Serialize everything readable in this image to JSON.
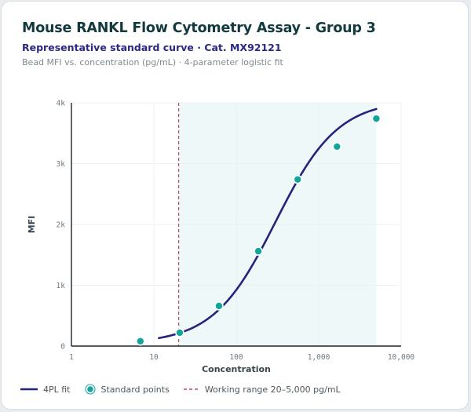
{
  "header": {
    "title": "Mouse RANKL Flow Cytometry Assay - Group 3",
    "subtitle": "Representative standard curve · Cat. MX92121",
    "caption": "Bead MFI vs. concentration (pg/mL) · 4-parameter logistic fit"
  },
  "chart_data": {
    "type": "scatter",
    "xlabel": "Concentration",
    "ylabel": "MFI",
    "x_scale": "log",
    "xlim": [
      1,
      10000
    ],
    "ylim": [
      0,
      4000
    ],
    "x_tick_labels": [
      "1",
      "10",
      "100",
      "1,000",
      "10,000"
    ],
    "x_ticks": [
      1,
      10,
      100,
      1000,
      10000
    ],
    "y_tick_labels": [
      "0",
      "1k",
      "2k",
      "3k",
      "4k"
    ],
    "y_ticks": [
      0,
      1000,
      2000,
      3000,
      4000
    ],
    "grid": true,
    "series": [
      {
        "name": "Standard points",
        "type": "scatter",
        "color": "#12a59a",
        "x": [
          6.86,
          20.6,
          61.7,
          185,
          556,
          1667,
          5000
        ],
        "y": [
          80,
          220,
          660,
          1560,
          2740,
          3280,
          3740
        ]
      },
      {
        "name": "4PL fit",
        "type": "line",
        "color": "#26247a",
        "fit": {
          "bottom": 40,
          "top": 4050,
          "ec50": 300,
          "hill": 1.15,
          "x_range": [
            11.5,
            5000
          ]
        }
      }
    ],
    "working_range": {
      "label": "Working range 20–5,000 pg/mL",
      "from": 20,
      "to": 5000,
      "fill_color": "#eef8f9",
      "line_color": "#c84a52"
    },
    "legend": [
      "4PL fit",
      "Standard points",
      "Working range 20–5,000 pg/mL"
    ],
    "legend_position": "bottom"
  }
}
